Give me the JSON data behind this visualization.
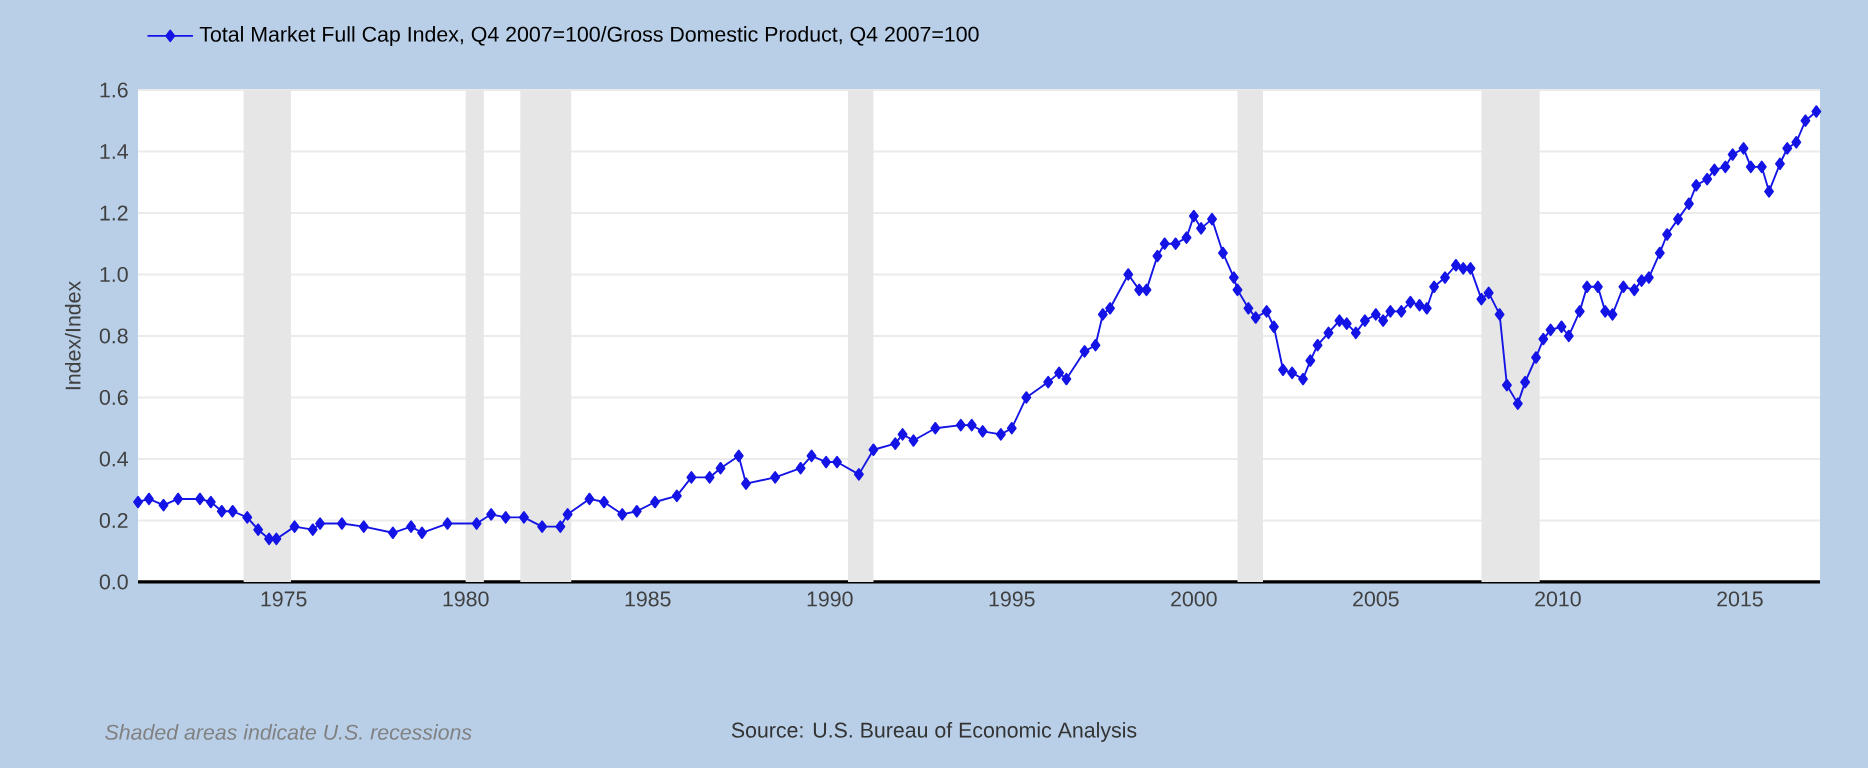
{
  "chart_data": {
    "type": "line",
    "ylabel": "Index/Index",
    "xlim": [
      1971,
      2017.2
    ],
    "ylim": [
      0,
      1.6
    ],
    "xticks": [
      1975,
      1980,
      1985,
      1990,
      1995,
      2000,
      2005,
      2010,
      2015
    ],
    "yticks": [
      {
        "value": 0,
        "label": "0.0"
      },
      0.2,
      0.4,
      0.6,
      0.8,
      {
        "value": 1,
        "label": "1.0"
      },
      1.2,
      1.4,
      1.6
    ],
    "grid": "y",
    "legend": "top left",
    "marker": "diamond",
    "line_style": "solid",
    "bands": [
      {
        "axis": "x",
        "from": 1973.9,
        "to": 1975.2,
        "color": "#e6e6e6"
      },
      {
        "axis": "x",
        "from": 1980.0,
        "to": 1980.5,
        "color": "#e6e6e6"
      },
      {
        "axis": "x",
        "from": 1981.5,
        "to": 1982.9,
        "color": "#e6e6e6"
      },
      {
        "axis": "x",
        "from": 1990.5,
        "to": 1991.2,
        "color": "#e6e6e6"
      },
      {
        "axis": "x",
        "from": 2001.2,
        "to": 2001.9,
        "color": "#e6e6e6"
      },
      {
        "axis": "x",
        "from": 2007.9,
        "to": 2009.5,
        "color": "#e6e6e6"
      }
    ],
    "annotations": [
      "Shaded areas indicate U.S. recessions",
      "Source: U.S. Bureau of Economic Analysis"
    ],
    "series": [
      {
        "name": "Total Market Full Cap Index, Q4 2007=100/Gross Domestic Product, Q4 2007=100",
        "color": "#1414e6",
        "x": [
          1971.0,
          1971.3,
          1971.7,
          1972.1,
          1972.7,
          1973.0,
          1973.3,
          1973.6,
          1974.0,
          1974.3,
          1974.6,
          1974.8,
          1975.3,
          1975.8,
          1976.0,
          1976.6,
          1977.2,
          1978.0,
          1978.5,
          1978.8,
          1979.5,
          1980.3,
          1980.7,
          1981.1,
          1981.6,
          1982.1,
          1982.6,
          1982.8,
          1983.4,
          1983.8,
          1984.3,
          1984.7,
          1985.2,
          1985.8,
          1986.2,
          1986.7,
          1987.0,
          1987.5,
          1987.7,
          1988.5,
          1989.2,
          1989.5,
          1989.9,
          1990.2,
          1990.8,
          1991.2,
          1991.8,
          1992.0,
          1992.3,
          1992.9,
          1993.6,
          1993.9,
          1994.2,
          1994.7,
          1995.0,
          1995.4,
          1996.0,
          1996.3,
          1996.5,
          1997.0,
          1997.3,
          1997.5,
          1997.7,
          1998.2,
          1998.5,
          1998.7,
          1999.0,
          1999.2,
          1999.5,
          1999.8,
          2000.0,
          2000.2,
          2000.5,
          2000.8,
          2001.1,
          2001.2,
          2001.5,
          2001.7,
          2002.0,
          2002.2,
          2002.45,
          2002.7,
          2003.0,
          2003.2,
          2003.4,
          2003.7,
          2004.0,
          2004.2,
          2004.45,
          2004.7,
          2005.0,
          2005.2,
          2005.4,
          2005.7,
          2005.95,
          2006.2,
          2006.4,
          2006.6,
          2006.9,
          2007.2,
          2007.4,
          2007.6,
          2007.9,
          2008.1,
          2008.4,
          2008.6,
          2008.9,
          2009.1,
          2009.4,
          2009.6,
          2009.8,
          2010.1,
          2010.3,
          2010.6,
          2010.8,
          2011.1,
          2011.3,
          2011.5,
          2011.8,
          2012.1,
          2012.3,
          2012.5,
          2012.8,
          2013.0,
          2013.3,
          2013.6,
          2013.8,
          2014.1,
          2014.3,
          2014.6,
          2014.8,
          2015.1,
          2015.3,
          2015.6,
          2015.8,
          2016.1,
          2016.3,
          2016.55,
          2016.8,
          2017.1
        ],
        "values": [
          0.26,
          0.27,
          0.25,
          0.27,
          0.27,
          0.26,
          0.23,
          0.23,
          0.21,
          0.17,
          0.14,
          0.14,
          0.18,
          0.17,
          0.19,
          0.19,
          0.18,
          0.16,
          0.18,
          0.16,
          0.19,
          0.19,
          0.22,
          0.21,
          0.21,
          0.18,
          0.18,
          0.22,
          0.27,
          0.26,
          0.22,
          0.23,
          0.26,
          0.28,
          0.34,
          0.34,
          0.37,
          0.41,
          0.32,
          0.34,
          0.37,
          0.41,
          0.39,
          0.39,
          0.35,
          0.43,
          0.45,
          0.48,
          0.46,
          0.5,
          0.51,
          0.51,
          0.49,
          0.48,
          0.5,
          0.6,
          0.65,
          0.68,
          0.66,
          0.75,
          0.77,
          0.87,
          0.89,
          1.0,
          0.95,
          0.95,
          1.06,
          1.1,
          1.1,
          1.12,
          1.19,
          1.15,
          1.18,
          1.07,
          0.99,
          0.95,
          0.89,
          0.86,
          0.88,
          0.83,
          0.69,
          0.68,
          0.66,
          0.72,
          0.77,
          0.81,
          0.85,
          0.84,
          0.81,
          0.85,
          0.87,
          0.85,
          0.88,
          0.88,
          0.91,
          0.9,
          0.89,
          0.96,
          0.99,
          1.03,
          1.02,
          1.02,
          0.92,
          0.94,
          0.87,
          0.64,
          0.58,
          0.65,
          0.73,
          0.79,
          0.82,
          0.83,
          0.8,
          0.88,
          0.96,
          0.96,
          0.88,
          0.87,
          0.96,
          0.95,
          0.98,
          0.99,
          1.07,
          1.13,
          1.18,
          1.23,
          1.29,
          1.31,
          1.34,
          1.35,
          1.39,
          1.41,
          1.35,
          1.35,
          1.27,
          1.36,
          1.41,
          1.43,
          1.5,
          1.53
        ]
      }
    ]
  }
}
